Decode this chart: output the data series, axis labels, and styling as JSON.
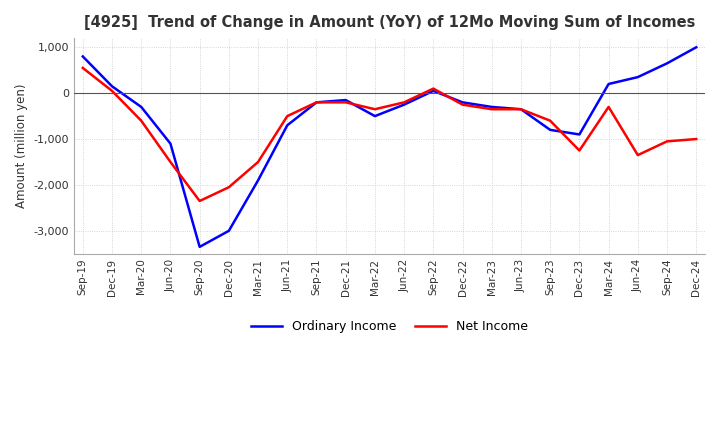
{
  "title": "[4925]  Trend of Change in Amount (YoY) of 12Mo Moving Sum of Incomes",
  "ylabel": "Amount (million yen)",
  "ylim": [
    -3500,
    1200
  ],
  "yticks": [
    1000,
    0,
    -1000,
    -2000,
    -3000
  ],
  "background_color": "#ffffff",
  "grid_color": "#c8c8c8",
  "ordinary_income_color": "#0000ff",
  "net_income_color": "#ff0000",
  "x_labels": [
    "Sep-19",
    "Dec-19",
    "Mar-20",
    "Jun-20",
    "Sep-20",
    "Dec-20",
    "Mar-21",
    "Jun-21",
    "Sep-21",
    "Dec-21",
    "Mar-22",
    "Jun-22",
    "Sep-22",
    "Dec-22",
    "Mar-23",
    "Jun-23",
    "Sep-23",
    "Dec-23",
    "Mar-24",
    "Jun-24",
    "Sep-24",
    "Dec-24"
  ],
  "ordinary_income": [
    800,
    150,
    -300,
    -1100,
    -3350,
    -3000,
    -1900,
    -700,
    -200,
    -150,
    -500,
    -250,
    50,
    -200,
    -300,
    -350,
    -800,
    -900,
    200,
    350,
    650,
    1000
  ],
  "net_income": [
    550,
    50,
    -600,
    -1500,
    -2350,
    -2050,
    -1500,
    -500,
    -200,
    -200,
    -350,
    -200,
    100,
    -250,
    -350,
    -350,
    -600,
    -1250,
    -300,
    -1350,
    -1050,
    -1000
  ]
}
